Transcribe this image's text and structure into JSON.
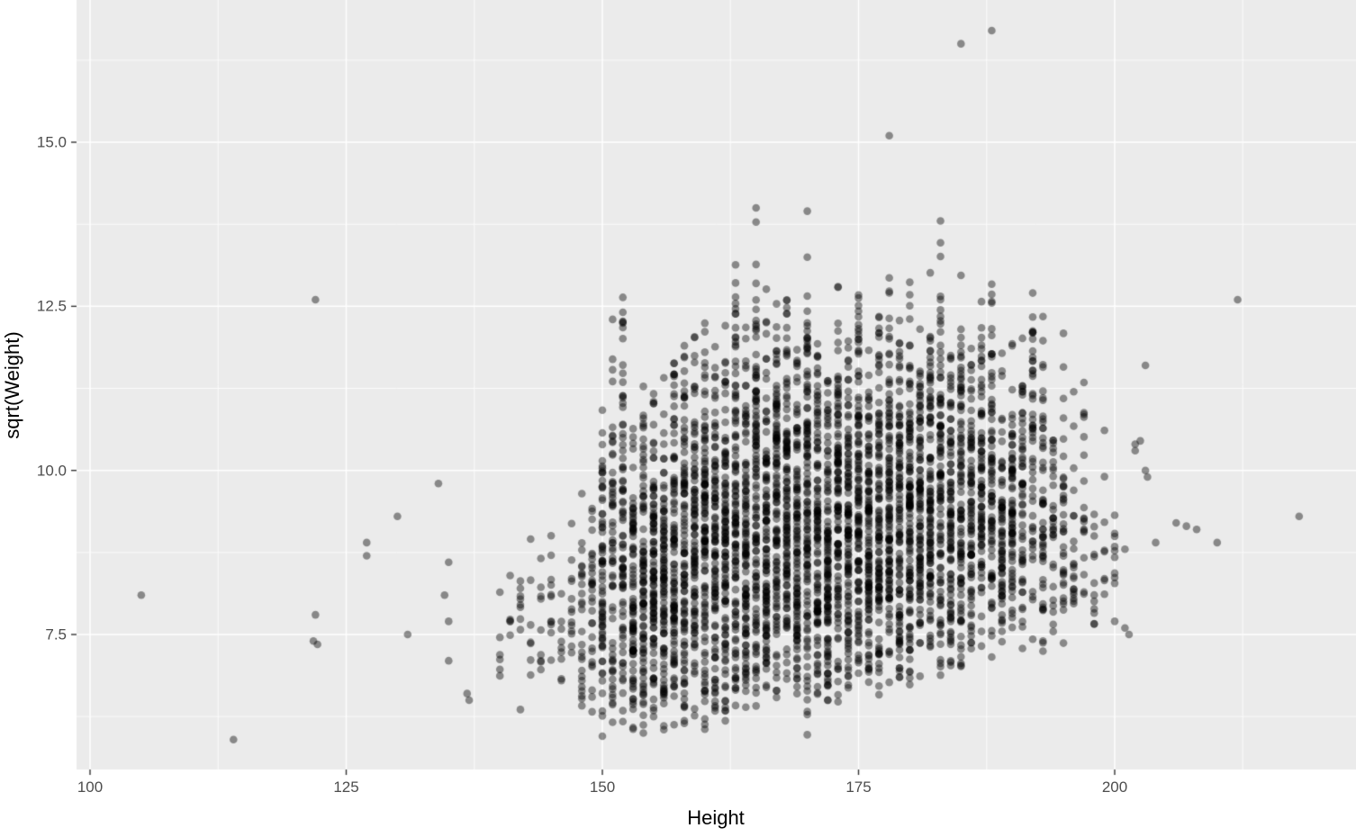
{
  "chart_data": {
    "type": "scatter",
    "title": "",
    "xlabel": "Height",
    "ylabel": "sqrt(Weight)",
    "xlim": [
      98.7,
      223.5
    ],
    "ylim": [
      5.44,
      17.17
    ],
    "x_ticks": [
      100,
      125,
      150,
      175,
      200
    ],
    "y_ticks": [
      7.5,
      10.0,
      12.5,
      15.0
    ],
    "x_tick_labels": [
      "100",
      "125",
      "150",
      "175",
      "200"
    ],
    "y_tick_labels": [
      "7.5",
      "10.0",
      "12.5",
      "15.0"
    ],
    "x_minor": [
      112.5,
      137.5,
      162.5,
      187.5,
      212.5
    ],
    "y_minor": [
      6.25,
      8.75,
      11.25,
      13.75,
      16.25
    ],
    "grid": "on",
    "legend": "none",
    "panel_background": "#ebebeb",
    "grid_color": "#ffffff",
    "tick_color": "#333333",
    "tick_label_color": "#4d4d4d",
    "point_color": "#000000",
    "point_opacity": 0.42,
    "point_radius_px": 4.3,
    "columns_note": "Each column is [height, n_points, sqrtWeight_min, sqrtWeight_max]; points are over-plotted at integer heights",
    "columns": [
      [
        140,
        6,
        6.8,
        8.4
      ],
      [
        141,
        5,
        7.0,
        8.6
      ],
      [
        142,
        9,
        6.3,
        8.9
      ],
      [
        143,
        7,
        6.5,
        9.4
      ],
      [
        144,
        9,
        6.6,
        9.0
      ],
      [
        145,
        11,
        6.4,
        9.6
      ],
      [
        146,
        9,
        6.5,
        8.7
      ],
      [
        147,
        13,
        6.3,
        10.0
      ],
      [
        148,
        26,
        6.2,
        10.2
      ],
      [
        149,
        30,
        6.1,
        10.4
      ],
      [
        150,
        70,
        5.9,
        11.7
      ],
      [
        151,
        60,
        6.0,
        12.4
      ],
      [
        152,
        80,
        5.9,
        13.0
      ],
      [
        153,
        85,
        6.0,
        11.0
      ],
      [
        154,
        90,
        5.9,
        11.6
      ],
      [
        155,
        100,
        6.0,
        11.7
      ],
      [
        156,
        95,
        6.0,
        11.5
      ],
      [
        157,
        100,
        5.9,
        12.2
      ],
      [
        158,
        100,
        6.1,
        12.3
      ],
      [
        159,
        95,
        6.2,
        12.5
      ],
      [
        160,
        110,
        6.0,
        13.5
      ],
      [
        161,
        100,
        6.2,
        12.0
      ],
      [
        162,
        108,
        6.1,
        12.5
      ],
      [
        163,
        110,
        6.3,
        13.5
      ],
      [
        164,
        108,
        6.2,
        12.6
      ],
      [
        165,
        115,
        6.3,
        14.0
      ],
      [
        166,
        108,
        6.2,
        13.0
      ],
      [
        167,
        112,
        6.4,
        13.6
      ],
      [
        168,
        112,
        6.3,
        13.0
      ],
      [
        169,
        108,
        6.2,
        12.5
      ],
      [
        170,
        118,
        5.9,
        14.0
      ],
      [
        171,
        108,
        6.5,
        12.4
      ],
      [
        172,
        112,
        6.4,
        12.1
      ],
      [
        173,
        112,
        6.4,
        13.2
      ],
      [
        174,
        108,
        6.6,
        12.2
      ],
      [
        175,
        118,
        6.5,
        13.3
      ],
      [
        176,
        108,
        6.6,
        12.4
      ],
      [
        177,
        108,
        6.5,
        13.0
      ],
      [
        178,
        112,
        6.6,
        13.2
      ],
      [
        179,
        105,
        6.7,
        12.6
      ],
      [
        180,
        115,
        6.5,
        13.5
      ],
      [
        181,
        100,
        6.8,
        12.5
      ],
      [
        182,
        105,
        6.7,
        13.2
      ],
      [
        183,
        98,
        6.8,
        13.8
      ],
      [
        184,
        92,
        6.9,
        12.6
      ],
      [
        185,
        95,
        6.8,
        13.3
      ],
      [
        186,
        82,
        7.0,
        12.5
      ],
      [
        187,
        82,
        7.0,
        13.1
      ],
      [
        188,
        78,
        7.1,
        13.1
      ],
      [
        189,
        68,
        7.0,
        12.0
      ],
      [
        190,
        72,
        6.9,
        12.8
      ],
      [
        191,
        55,
        7.2,
        12.4
      ],
      [
        192,
        50,
        7.1,
        13.5
      ],
      [
        193,
        52,
        7.0,
        12.7
      ],
      [
        194,
        30,
        7.3,
        11.6
      ],
      [
        195,
        34,
        7.2,
        12.6
      ],
      [
        196,
        20,
        7.4,
        11.4
      ],
      [
        197,
        18,
        7.5,
        11.7
      ],
      [
        198,
        12,
        7.6,
        10.5
      ],
      [
        199,
        8,
        7.5,
        10.7
      ],
      [
        200,
        10,
        7.5,
        10.8
      ]
    ],
    "outliers": [
      [
        105,
        8.1
      ],
      [
        114,
        5.9
      ],
      [
        122,
        12.6
      ],
      [
        122,
        7.8
      ],
      [
        121.8,
        7.4
      ],
      [
        122.2,
        7.35
      ],
      [
        127,
        8.9
      ],
      [
        127,
        8.7
      ],
      [
        130,
        9.3
      ],
      [
        131,
        7.5
      ],
      [
        134,
        9.8
      ],
      [
        135,
        8.6
      ],
      [
        134.6,
        8.1
      ],
      [
        135,
        7.7
      ],
      [
        135,
        7.1
      ],
      [
        136.8,
        6.6
      ],
      [
        137,
        6.5
      ],
      [
        165,
        14.0
      ],
      [
        170,
        13.95
      ],
      [
        178,
        15.1
      ],
      [
        183,
        13.8
      ],
      [
        185,
        16.5
      ],
      [
        188,
        16.7
      ],
      [
        201,
        8.8
      ],
      [
        201,
        7.6
      ],
      [
        201.4,
        7.5
      ],
      [
        202,
        10.4
      ],
      [
        202,
        10.3
      ],
      [
        202.5,
        10.45
      ],
      [
        203,
        11.6
      ],
      [
        203,
        10.0
      ],
      [
        203.2,
        9.9
      ],
      [
        204,
        8.9
      ],
      [
        206,
        9.2
      ],
      [
        207,
        9.15
      ],
      [
        208,
        9.1
      ],
      [
        210,
        8.9
      ],
      [
        212,
        12.6
      ],
      [
        218,
        9.3
      ]
    ]
  }
}
